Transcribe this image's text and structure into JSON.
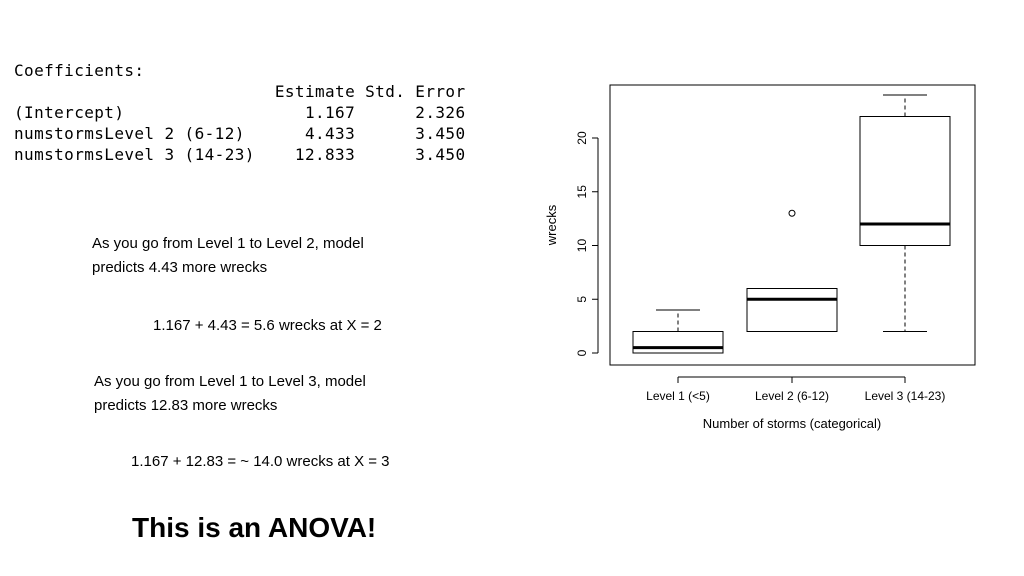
{
  "coefficients": {
    "title": "Coefficients:",
    "header": "                          Estimate Std. Error",
    "rows": [
      "(Intercept)                  1.167      2.326",
      "numstormsLevel 2 (6-12)      4.433      3.450",
      "numstormsLevel 3 (14-23)    12.833      3.450"
    ]
  },
  "notes": {
    "level2_text_1": "As you go from Level 1 to Level 2, model",
    "level2_text_2": "predicts 4.43 more wrecks",
    "level2_calc": "1.167 + 4.43 = 5.6 wrecks at X = 2",
    "level3_text_1": "As you go from Level 1 to Level 3, model",
    "level3_text_2": "predicts 12.83 more wrecks",
    "level3_calc": "1.167 + 12.83 = ~ 14.0 wrecks at X = 3"
  },
  "headline": "This is an ANOVA!",
  "chart_data": {
    "type": "boxplot",
    "xlabel": "Number of storms (categorical)",
    "ylabel": "wrecks",
    "ylim": [
      -1,
      25
    ],
    "yticks": [
      0,
      5,
      10,
      15,
      20
    ],
    "categories": [
      "Level 1 (<5)",
      "Level 2 (6-12)",
      "Level 3 (14-23)"
    ],
    "boxes": [
      {
        "whisker_low": 0,
        "q1": 0,
        "median": 0.5,
        "q3": 2,
        "whisker_high": 4,
        "outliers": []
      },
      {
        "whisker_low": 2,
        "q1": 2,
        "median": 5,
        "q3": 6,
        "whisker_high": 6,
        "outliers": [
          13
        ]
      },
      {
        "whisker_low": 2,
        "q1": 10,
        "median": 12,
        "q3": 22,
        "whisker_high": 24,
        "outliers": []
      }
    ]
  }
}
